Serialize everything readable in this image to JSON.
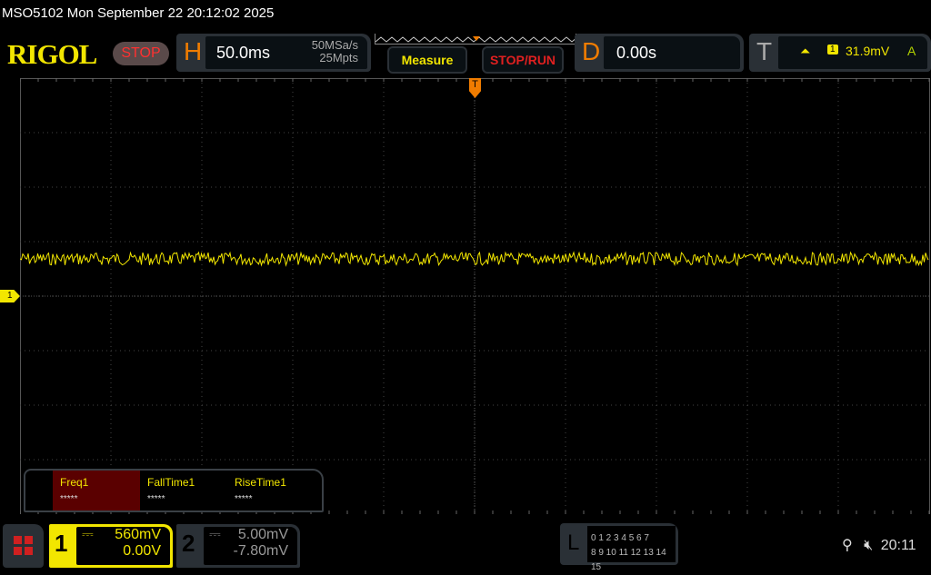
{
  "title": "MSO5102  Mon September 22 20:12:02 2025",
  "logo": "RIGOL",
  "run_state": "STOP",
  "horizontal": {
    "letter": "H",
    "timebase": "50.0ms",
    "sample_rate": "50MSa/s",
    "memory_depth": "25Mpts"
  },
  "buttons": {
    "measure": "Measure",
    "stop_run": "STOP/RUN"
  },
  "delay": {
    "letter": "D",
    "value": "0.00s"
  },
  "trigger": {
    "letter": "T",
    "slope": "rising-edge-icon",
    "source": "1",
    "level": "31.9mV",
    "mode": "A"
  },
  "markers": {
    "channel1": "1",
    "trigger": "T"
  },
  "measurements": [
    {
      "label": "Freq1",
      "value": "*****"
    },
    {
      "label": "FallTime1",
      "value": "*****"
    },
    {
      "label": "RiseTime1",
      "value": "*****"
    }
  ],
  "channels": [
    {
      "number": "1",
      "scale": "560mV",
      "offset": "0.00V",
      "coupling": "dc-icon"
    },
    {
      "number": "2",
      "scale": "5.00mV",
      "offset": "-7.80mV",
      "coupling": "dc-icon"
    }
  ],
  "logic": {
    "letter": "L",
    "row1": "0 1 2 3  4 5 6 7",
    "row2": "8 9 10 11 12 13 14 15"
  },
  "status": {
    "usb": "usb-icon",
    "sound": "mute-icon",
    "time": "20:11"
  },
  "colors": {
    "ch1": "#f2e600",
    "trigger": "#f07c00",
    "stop": "#ff3030"
  }
}
